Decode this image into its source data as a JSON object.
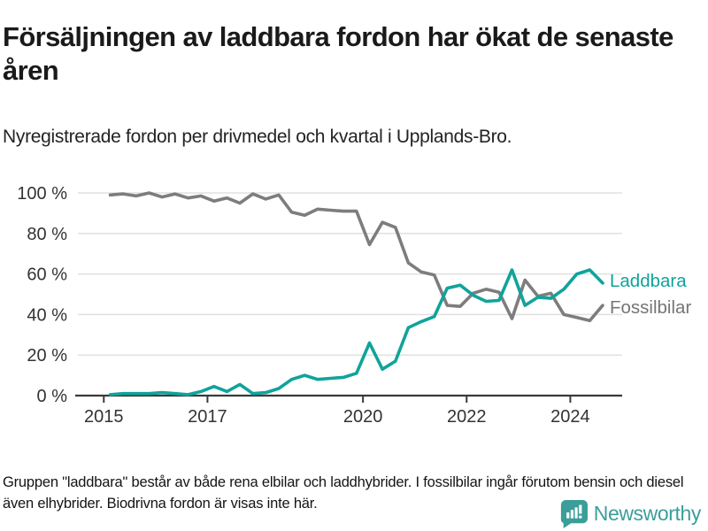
{
  "header": {
    "title": "Försäljningen av laddbara fordon har ökat de senaste åren",
    "subtitle": "Nyregistrerade fordon per drivmedel och kvartal i Upplands-Bro."
  },
  "chart_data": {
    "type": "line",
    "title": "Försäljningen av laddbara fordon har ökat de senaste åren",
    "subtitle": "Nyregistrerade fordon per drivmedel och kvartal i Upplands-Bro.",
    "x_unit": "quarter",
    "quarters": [
      "2015-K1",
      "2015-K2",
      "2015-K3",
      "2015-K4",
      "2016-K1",
      "2016-K2",
      "2016-K3",
      "2016-K4",
      "2017-K1",
      "2017-K2",
      "2017-K3",
      "2017-K4",
      "2018-K1",
      "2018-K2",
      "2018-K3",
      "2018-K4",
      "2019-K1",
      "2019-K2",
      "2019-K3",
      "2019-K4",
      "2020-K1",
      "2020-K2",
      "2020-K3",
      "2020-K4",
      "2021-K1",
      "2021-K2",
      "2021-K3",
      "2021-K4",
      "2022-K1",
      "2022-K2",
      "2022-K3",
      "2022-K4",
      "2023-K1",
      "2023-K2",
      "2023-K3",
      "2023-K4",
      "2024-K1",
      "2024-K2",
      "2024-K3"
    ],
    "series": [
      {
        "name": "Fossilbilar",
        "color": "#7d7d7d",
        "label_color": "#757575",
        "values": [
          99,
          99.5,
          98.5,
          100,
          98,
          99.5,
          97.5,
          98.5,
          96,
          97.5,
          95,
          99.5,
          97,
          99,
          90.5,
          89,
          92,
          91.5,
          91,
          91,
          74.5,
          85.5,
          83,
          65.5,
          61,
          59.5,
          44.5,
          44,
          50.5,
          52.5,
          51,
          38,
          57,
          49,
          50.5,
          40,
          38.5,
          37,
          44.5
        ]
      },
      {
        "name": "Laddbara",
        "color": "#10a39b",
        "label_color": "#10a39b",
        "values": [
          0.5,
          1,
          1,
          1,
          1.5,
          1,
          0.5,
          2,
          4.5,
          2,
          5.5,
          1,
          1.5,
          3.5,
          8,
          10,
          8,
          8.5,
          9,
          11,
          26,
          13,
          17,
          33.5,
          36.5,
          39,
          53,
          54.5,
          49.5,
          46.5,
          47,
          62,
          44.5,
          48.5,
          48,
          52.5,
          60,
          62,
          55.5
        ]
      }
    ],
    "y_ticks": [
      "0 %",
      "20 %",
      "40 %",
      "60 %",
      "80 %",
      "100 %"
    ],
    "y_tick_values": [
      0,
      20,
      40,
      60,
      80,
      100
    ],
    "x_ticks": [
      "2015",
      "2017",
      "2020",
      "2022",
      "2024"
    ],
    "x_tick_values": [
      2015,
      2017,
      2020,
      2022,
      2024
    ],
    "ylim": [
      0,
      100
    ],
    "xlim": [
      2014.5,
      2025.0
    ],
    "grid": "horizontal",
    "legend_position": "right-end-labels"
  },
  "footnote": "Gruppen \"laddbara\" består av både rena elbilar och laddhybrider. I fossilbilar ingår förutom bensin och diesel även elhybrider. Biodrivna fordon är visas inte här.",
  "branding": {
    "name": "Newsworthy",
    "logo_color": "#3b9e98"
  },
  "colors": {
    "laddbara_line": "#10a39b",
    "fossilbilar_line": "#7d7d7d",
    "gridline": "#e0e0e0",
    "axis": "#3a3a3a",
    "tick_label": "#333333",
    "title": "#1a1a1a"
  }
}
